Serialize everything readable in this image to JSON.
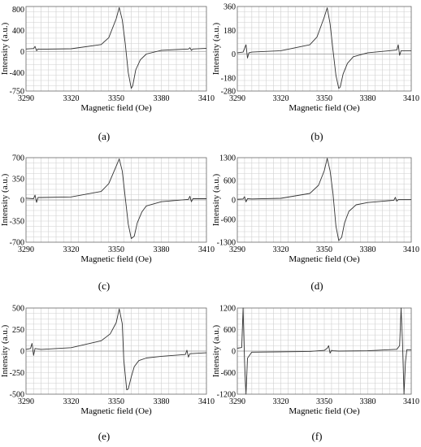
{
  "chart_data": [
    {
      "type": "line",
      "label": "(a)",
      "xlabel": "Magnetic field (Oe)",
      "ylabel": "Intensity (a.u.)",
      "xlim": [
        3290,
        3410
      ],
      "ylim": [
        -750,
        850
      ],
      "xticks": [
        3290,
        3320,
        3350,
        3380,
        3410
      ],
      "yticks": [
        800,
        400,
        0,
        -400,
        -750
      ],
      "grid": true,
      "series": [
        {
          "x": [
            3290,
            3295,
            3296,
            3297,
            3298,
            3300,
            3320,
            3340,
            3345,
            3350,
            3352,
            3354,
            3356,
            3358,
            3360,
            3361,
            3363,
            3366,
            3370,
            3380,
            3398,
            3399,
            3400,
            3401,
            3410
          ],
          "values": [
            45,
            55,
            95,
            15,
            45,
            40,
            50,
            130,
            260,
            620,
            830,
            600,
            150,
            -400,
            -700,
            -650,
            -350,
            -160,
            -50,
            20,
            45,
            70,
            20,
            45,
            60
          ]
        }
      ]
    },
    {
      "type": "line",
      "label": "(b)",
      "xlabel": "Magnetic field (Oe)",
      "ylabel": "Intensity (a.u.)",
      "xlim": [
        3290,
        3410
      ],
      "ylim": [
        -280,
        360
      ],
      "xticks": [
        3290,
        3320,
        3350,
        3380,
        3410
      ],
      "yticks": [
        360,
        180,
        0,
        -180,
        -280
      ],
      "grid": true,
      "series": [
        {
          "x": [
            3290,
            3294,
            3296,
            3297,
            3298,
            3300,
            3320,
            3340,
            3345,
            3350,
            3352,
            3354,
            3356,
            3358,
            3360,
            3361,
            3363,
            3366,
            3370,
            3380,
            3400,
            3401,
            3402,
            3403,
            3410
          ],
          "values": [
            10,
            15,
            70,
            -30,
            10,
            15,
            25,
            70,
            130,
            280,
            350,
            230,
            30,
            -160,
            -260,
            -250,
            -150,
            -70,
            -20,
            10,
            30,
            70,
            -10,
            25,
            25
          ]
        }
      ]
    },
    {
      "type": "line",
      "label": "(c)",
      "xlabel": "Magnetic field (Oe)",
      "ylabel": "Intensity (a.u.)",
      "xlim": [
        3290,
        3410
      ],
      "ylim": [
        -700,
        700
      ],
      "xticks": [
        3290,
        3320,
        3350,
        3380,
        3410
      ],
      "yticks": [
        700,
        350,
        0,
        -350,
        -700
      ],
      "grid": true,
      "series": [
        {
          "x": [
            3290,
            3295,
            3296,
            3297,
            3298,
            3300,
            3320,
            3340,
            3345,
            3350,
            3352,
            3354,
            3356,
            3358,
            3360,
            3362,
            3364,
            3367,
            3370,
            3380,
            3398,
            3399,
            3400,
            3401,
            3410
          ],
          "values": [
            30,
            20,
            80,
            -40,
            40,
            40,
            50,
            140,
            270,
            560,
            680,
            480,
            40,
            -400,
            -640,
            -600,
            -380,
            -200,
            -100,
            -30,
            10,
            60,
            -30,
            20,
            20
          ]
        }
      ]
    },
    {
      "type": "line",
      "label": "(d)",
      "xlabel": "Magnetic field (Oe)",
      "ylabel": "Intensity (a.u.)",
      "xlim": [
        3290,
        3410
      ],
      "ylim": [
        -1300,
        1300
      ],
      "xticks": [
        3290,
        3320,
        3350,
        3380,
        3410
      ],
      "yticks": [
        1300,
        600,
        0,
        -600,
        -1300
      ],
      "grid": true,
      "series": [
        {
          "x": [
            3290,
            3294,
            3295,
            3296,
            3297,
            3300,
            3320,
            3340,
            3346,
            3350,
            3352,
            3354,
            3356,
            3358,
            3360,
            3362,
            3364,
            3367,
            3372,
            3380,
            3398,
            3399,
            3400,
            3401,
            3410
          ],
          "values": [
            20,
            30,
            100,
            -60,
            40,
            30,
            50,
            200,
            450,
            900,
            1280,
            900,
            200,
            -800,
            -1250,
            -1150,
            -700,
            -350,
            -150,
            -80,
            -10,
            80,
            -40,
            10,
            10
          ]
        }
      ]
    },
    {
      "type": "line",
      "label": "(e)",
      "xlabel": "Magnetic field (Oe)",
      "ylabel": "Intensity (a.u.)",
      "xlim": [
        3290,
        3410
      ],
      "ylim": [
        -500,
        500
      ],
      "xticks": [
        3290,
        3320,
        3350,
        3380,
        3410
      ],
      "yticks": [
        500,
        250,
        0,
        -250,
        -500
      ],
      "grid": true,
      "series": [
        {
          "x": [
            3290,
            3293,
            3294,
            3295,
            3296,
            3300,
            3320,
            3340,
            3346,
            3350,
            3352,
            3354,
            3355,
            3357,
            3358,
            3360,
            3362,
            3365,
            3370,
            3380,
            3396,
            3397,
            3398,
            3399,
            3410
          ],
          "values": [
            20,
            30,
            90,
            -50,
            30,
            20,
            40,
            120,
            200,
            330,
            490,
            320,
            -100,
            -450,
            -440,
            -300,
            -180,
            -110,
            -80,
            -60,
            -40,
            10,
            -70,
            -30,
            -20
          ]
        }
      ]
    },
    {
      "type": "line",
      "label": "(f)",
      "xlabel": "Magnetic field (Oe)",
      "ylabel": "Intensity (a.u.)",
      "xlim": [
        3290,
        3410
      ],
      "ylim": [
        -1200,
        1200
      ],
      "xticks": [
        3290,
        3320,
        3350,
        3380,
        3410
      ],
      "yticks": [
        1200,
        600,
        0,
        -600,
        -1200
      ],
      "grid": true,
      "series": [
        {
          "x": [
            3290,
            3293,
            3294,
            3295,
            3296,
            3297,
            3300,
            3320,
            3340,
            3350,
            3352,
            3353,
            3354,
            3355,
            3356,
            3360,
            3380,
            3400,
            3402,
            3403,
            3404,
            3405,
            3406,
            3407,
            3410
          ],
          "values": [
            80,
            100,
            1200,
            -300,
            -1200,
            -200,
            -30,
            -20,
            -10,
            20,
            80,
            150,
            -60,
            20,
            10,
            0,
            10,
            50,
            150,
            1200,
            200,
            -1200,
            -300,
            40,
            30
          ]
        }
      ]
    }
  ]
}
